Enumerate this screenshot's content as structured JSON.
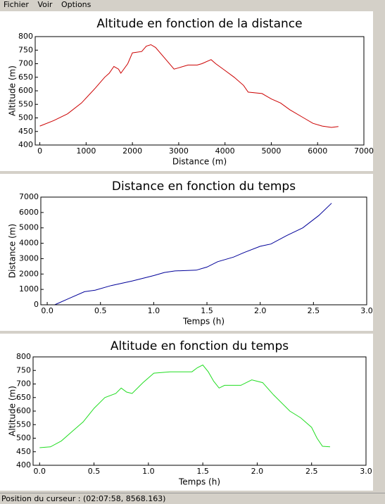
{
  "menu": [
    "Fichier",
    "Voir",
    "Options"
  ],
  "status_bar": "Position du curseur : (02:07:58, 8568.163)",
  "chart_data": [
    {
      "type": "line",
      "title": "Altitude en fonction de la distance",
      "x_label": "Distance (m)",
      "y_label": "Altitude (m)",
      "x": [
        0,
        300,
        600,
        900,
        1200,
        1400,
        1500,
        1600,
        1700,
        1750,
        1900,
        2000,
        2200,
        2300,
        2400,
        2500,
        2700,
        2900,
        3000,
        3200,
        3400,
        3500,
        3700,
        3800,
        4000,
        4200,
        4400,
        4500,
        4800,
        5000,
        5200,
        5400,
        5700,
        5900,
        6100,
        6300,
        6450
      ],
      "series": [
        {
          "color": "#cc0000",
          "values": [
            470,
            490,
            515,
            555,
            610,
            650,
            665,
            690,
            680,
            665,
            700,
            740,
            745,
            765,
            770,
            760,
            720,
            680,
            685,
            695,
            695,
            700,
            715,
            700,
            675,
            650,
            620,
            595,
            590,
            570,
            555,
            530,
            500,
            480,
            470,
            465,
            468
          ]
        }
      ],
      "xlim": [
        -100,
        7000
      ],
      "xticks": [
        0,
        1000,
        2000,
        3000,
        4000,
        5000,
        6000,
        7000
      ],
      "ylim": [
        400,
        800
      ],
      "yticks": [
        400,
        450,
        500,
        550,
        600,
        650,
        700,
        750,
        800
      ]
    },
    {
      "type": "line",
      "title": "Distance en fonction du temps",
      "x_label": "Temps (h)",
      "y_label": "Distance (m)",
      "x": [
        0.07,
        0.2,
        0.35,
        0.45,
        0.6,
        0.8,
        1.0,
        1.1,
        1.2,
        1.4,
        1.5,
        1.6,
        1.75,
        1.85,
        2.0,
        2.1,
        2.25,
        2.4,
        2.55,
        2.67
      ],
      "series": [
        {
          "color": "#000099",
          "values": [
            0,
            400,
            850,
            950,
            1250,
            1550,
            1900,
            2100,
            2200,
            2250,
            2450,
            2800,
            3100,
            3400,
            3800,
            3950,
            4500,
            5000,
            5800,
            6600
          ]
        }
      ],
      "xlim": [
        -0.06,
        3.0
      ],
      "xticks": [
        {
          "value": 0,
          "label": "0.0"
        },
        0.5,
        {
          "value": 1,
          "label": "1.0"
        },
        1.5,
        {
          "value": 2,
          "label": "2.0"
        },
        2.5,
        {
          "value": 3,
          "label": "3.0"
        }
      ],
      "ylim": [
        0,
        7000
      ],
      "yticks": [
        0,
        1000,
        2000,
        3000,
        4000,
        5000,
        6000,
        7000
      ]
    },
    {
      "type": "line",
      "title": "Altitude en fonction du temps",
      "x_label": "Temps (h)",
      "y_label": "Altitude (m)",
      "x": [
        0,
        0.1,
        0.2,
        0.3,
        0.4,
        0.5,
        0.6,
        0.7,
        0.75,
        0.8,
        0.85,
        0.95,
        1.05,
        1.2,
        1.4,
        1.45,
        1.5,
        1.55,
        1.6,
        1.65,
        1.7,
        1.85,
        1.95,
        2.05,
        2.15,
        2.3,
        2.4,
        2.5,
        2.55,
        2.6,
        2.67
      ],
      "series": [
        {
          "color": "#22dd22",
          "values": [
            465,
            468,
            490,
            525,
            560,
            610,
            650,
            665,
            685,
            670,
            665,
            705,
            740,
            745,
            745,
            760,
            770,
            745,
            710,
            685,
            695,
            695,
            715,
            705,
            660,
            600,
            575,
            540,
            500,
            470,
            468
          ]
        }
      ],
      "xlim": [
        -0.06,
        3.0
      ],
      "xticks": [
        {
          "value": 0,
          "label": "0.0"
        },
        0.5,
        {
          "value": 1,
          "label": "1.0"
        },
        1.5,
        {
          "value": 2,
          "label": "2.0"
        },
        2.5,
        {
          "value": 3,
          "label": "3.0"
        }
      ],
      "ylim": [
        400,
        800
      ],
      "yticks": [
        400,
        450,
        500,
        550,
        600,
        650,
        700,
        750,
        800
      ]
    }
  ]
}
